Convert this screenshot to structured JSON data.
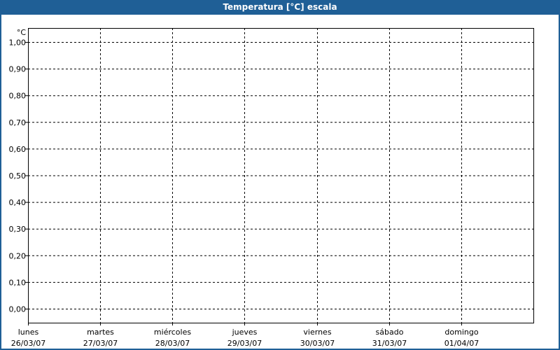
{
  "window": {
    "title": "Temperatura [°C] escala"
  },
  "chart_data": {
    "type": "line",
    "title": "Temperatura [°C] escala",
    "ylabel": "°C",
    "ylim": [
      0,
      1
    ],
    "yticks": [
      "1,00",
      "0,90",
      "0,80",
      "0,70",
      "0,60",
      "0,50",
      "0,40",
      "0,30",
      "0,20",
      "0,10",
      "0,00"
    ],
    "ytick_values": [
      1,
      0.9,
      0.8,
      0.7,
      0.6,
      0.5,
      0.4,
      0.3,
      0.2,
      0.1,
      0
    ],
    "categories": [
      {
        "day": "lunes",
        "date": "26/03/07"
      },
      {
        "day": "martes",
        "date": "27/03/07"
      },
      {
        "day": "miércoles",
        "date": "28/03/07"
      },
      {
        "day": "jueves",
        "date": "29/03/07"
      },
      {
        "day": "viernes",
        "date": "30/03/07"
      },
      {
        "day": "sábado",
        "date": "31/03/07"
      },
      {
        "day": "domingo",
        "date": "01/04/07"
      }
    ],
    "grid": true,
    "series": []
  }
}
